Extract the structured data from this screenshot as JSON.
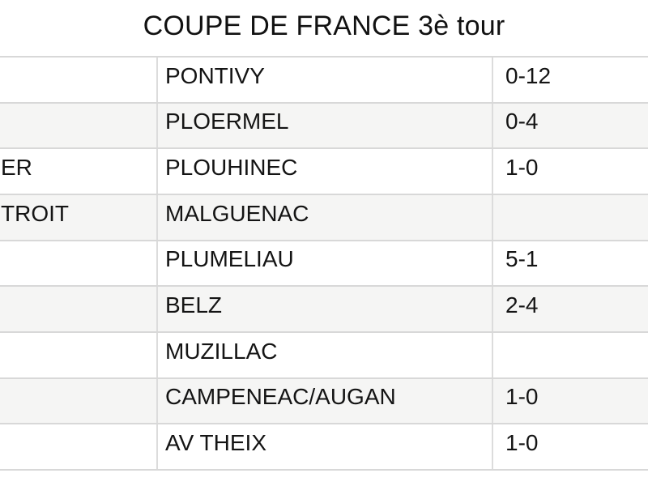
{
  "page": {
    "title": "COUPE DE FRANCE 3è tour"
  },
  "table": {
    "description": "Match results table, left column clipped by screen edge",
    "rows": [
      {
        "home": "",
        "away": "PONTIVY",
        "score": "0-12"
      },
      {
        "home": "",
        "away": "PLOERMEL",
        "score": "0-4"
      },
      {
        "home": "ER",
        "away": "PLOUHINEC",
        "score": "1-0"
      },
      {
        "home": "TROIT",
        "away": "MALGUENAC",
        "score": ""
      },
      {
        "home": "",
        "away": "PLUMELIAU",
        "score": "5-1"
      },
      {
        "home": "",
        "away": "BELZ",
        "score": "2-4"
      },
      {
        "home": "",
        "away": "MUZILLAC",
        "score": ""
      },
      {
        "home": "",
        "away": "CAMPENEAC/AUGAN",
        "score": "1-0"
      },
      {
        "home": "",
        "away": "AV THEIX",
        "score": "1-0"
      }
    ]
  },
  "colors": {
    "background": "#ffffff",
    "row_stripe": "#f5f5f4",
    "grid_line": "#d8d8d8",
    "text": "#141414"
  }
}
